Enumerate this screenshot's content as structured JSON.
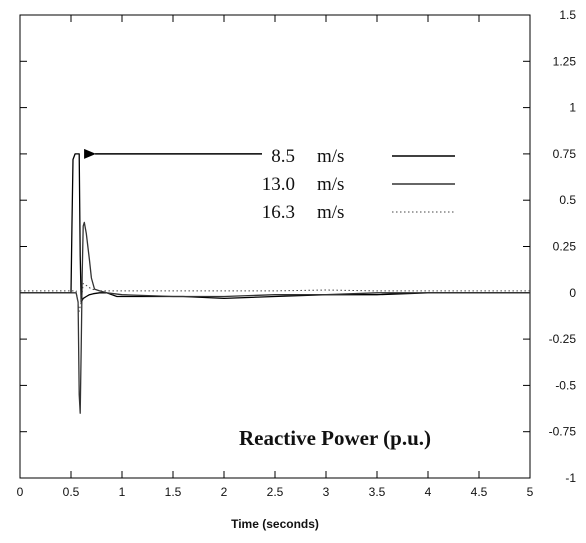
{
  "chart_data": {
    "type": "line",
    "title": "",
    "xlabel": "Time (seconds)",
    "ylabel": "",
    "xlim": [
      0,
      5
    ],
    "ylim": [
      -1,
      1.5
    ],
    "x_ticks": [
      0,
      0.5,
      1,
      1.5,
      2,
      2.5,
      3,
      3.5,
      4,
      4.5,
      5
    ],
    "x_tick_labels": [
      "0",
      "0.5",
      "1",
      "1.5",
      "2",
      "2.5",
      "3",
      "3.5",
      "4",
      "4.5",
      "5"
    ],
    "y_ticks": [
      -1,
      -0.75,
      -0.5,
      -0.25,
      0,
      0.25,
      0.5,
      0.75,
      1,
      1.25,
      1.5
    ],
    "y_tick_labels": [
      "-1",
      "-0.75",
      "-0.5",
      "-0.25",
      "0",
      "0.25",
      "0.5",
      "0.75",
      "1",
      "1.25",
      "1.5"
    ],
    "y_axis_side": "right",
    "grid": false,
    "legend_placement": "top-right",
    "annotation": "Reactive Power (p.u.)",
    "arrow_target_series": "8.5",
    "series": [
      {
        "name": "8.5",
        "unit": "m/s",
        "style": "solid",
        "color": "#000000",
        "x": [
          0,
          0.5,
          0.51,
          0.52,
          0.54,
          0.56,
          0.58,
          0.59,
          0.6,
          0.62,
          0.65,
          0.68,
          0.72,
          0.78,
          0.85,
          0.9,
          0.95,
          1.0,
          1.3,
          1.6,
          2.0,
          2.5,
          3.0,
          3.5,
          4.0,
          4.5,
          5.0
        ],
        "y": [
          0,
          0,
          0.38,
          0.72,
          0.75,
          0.75,
          0.75,
          0.2,
          -0.05,
          -0.03,
          -0.02,
          -0.01,
          -0.005,
          0,
          0,
          -0.01,
          -0.02,
          -0.02,
          -0.02,
          -0.02,
          -0.03,
          -0.02,
          -0.01,
          -0.01,
          0,
          0,
          0
        ]
      },
      {
        "name": "13.0",
        "unit": "m/s",
        "style": "solid",
        "color": "#333333",
        "x": [
          0,
          0.55,
          0.57,
          0.58,
          0.59,
          0.6,
          0.61,
          0.62,
          0.63,
          0.65,
          0.68,
          0.7,
          0.73,
          0.78,
          0.85,
          1.0,
          1.5,
          2.0,
          2.5,
          3.0,
          3.5,
          4.0,
          4.5,
          5.0
        ],
        "y": [
          0,
          0,
          -0.05,
          -0.55,
          -0.65,
          -0.3,
          0.1,
          0.36,
          0.38,
          0.32,
          0.18,
          0.08,
          0.02,
          0.01,
          0,
          -0.01,
          -0.02,
          -0.02,
          -0.01,
          -0.01,
          0,
          0,
          0,
          0
        ]
      },
      {
        "name": "16.3",
        "unit": "m/s",
        "style": "dotted",
        "color": "#444444",
        "x": [
          0,
          0.55,
          0.58,
          0.6,
          0.62,
          0.65,
          0.7,
          0.8,
          1.0,
          1.5,
          2.0,
          2.5,
          3.0,
          3.5,
          4.0,
          4.5,
          5.0
        ],
        "y": [
          0.01,
          0.01,
          -0.1,
          -0.05,
          0.05,
          0.04,
          0.02,
          0.01,
          0.01,
          0.01,
          0.01,
          0.01,
          0.015,
          0.01,
          0.01,
          0.01,
          0.01
        ]
      }
    ]
  }
}
